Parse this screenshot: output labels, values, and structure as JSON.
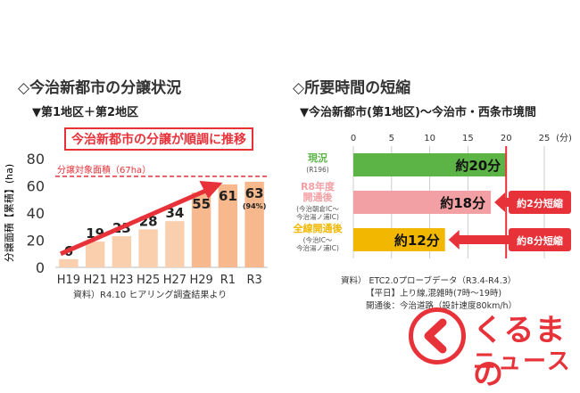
{
  "left": {
    "section_title": "◇今治新都市の分譲状況",
    "subtitle": "▼第1地区＋第2地区",
    "banner": "今治新都市の分譲が順調に推移",
    "target_label": "分譲対象面積（67ha）",
    "source": "資料）R4.10 ヒアリング調査結果より"
  },
  "right": {
    "section_title": "◇所要時間の短縮",
    "subtitle": "▼今治新都市(第1地区)～今治市・西条市境間",
    "source_lines": [
      "資料） ETC2.0プローブデータ（R3.4-R4.3）",
      "【平日】上り線,混雑時(7時～19時)",
      "開通後：今治道路（設計速度80km/h）"
    ]
  },
  "chart_data": [
    {
      "type": "bar",
      "categories": [
        "H19",
        "H21",
        "H23",
        "H25",
        "H27",
        "H29",
        "R1",
        "R3"
      ],
      "values": [
        6,
        19,
        23,
        28,
        34,
        55,
        61,
        63
      ],
      "ylabel": "分譲面積【累積】(ha)",
      "ylim": [
        0,
        80
      ],
      "yticks": [
        0,
        20,
        40,
        60,
        80
      ],
      "reference_line": {
        "value": 67,
        "label": "分譲対象面積（67ha）"
      },
      "annotations": [
        "(94%)"
      ],
      "colors": {
        "bar": "#f9cfae",
        "bar_strong": "#f6b88c",
        "reference": "#e8323a",
        "arrow": "#e8323a"
      }
    },
    {
      "type": "bar",
      "orientation": "horizontal",
      "categories": [
        {
          "name": "現況",
          "sub": [
            "(R196)"
          ],
          "color": "#5db446"
        },
        {
          "name": "R8年度\n開通後",
          "sub": [
            "(今治朝倉IC～",
            "今治湯ノ浦IC)"
          ],
          "color": "#f3a0a4"
        },
        {
          "name": "全線開通後",
          "sub": [
            "(今治IC～",
            "今治湯ノ浦IC)"
          ],
          "color": "#f2b700"
        }
      ],
      "values": [
        20,
        18,
        12
      ],
      "value_labels": [
        "約20分",
        "約18分",
        "約12分"
      ],
      "unit": "(分)",
      "xlim": [
        0,
        25
      ],
      "xticks": [
        0,
        5,
        10,
        15,
        20,
        25
      ],
      "callouts": [
        "約2分短縮",
        "約8分短縮"
      ],
      "grid": true,
      "colors": {
        "now": "#5db446",
        "r8": "#f5a6aa",
        "full": "#f8c21c",
        "reference": "#e8323a",
        "callout": "#e8323a"
      }
    }
  ],
  "logo": {
    "line1": "くるまの",
    "line2": "ニュース"
  }
}
